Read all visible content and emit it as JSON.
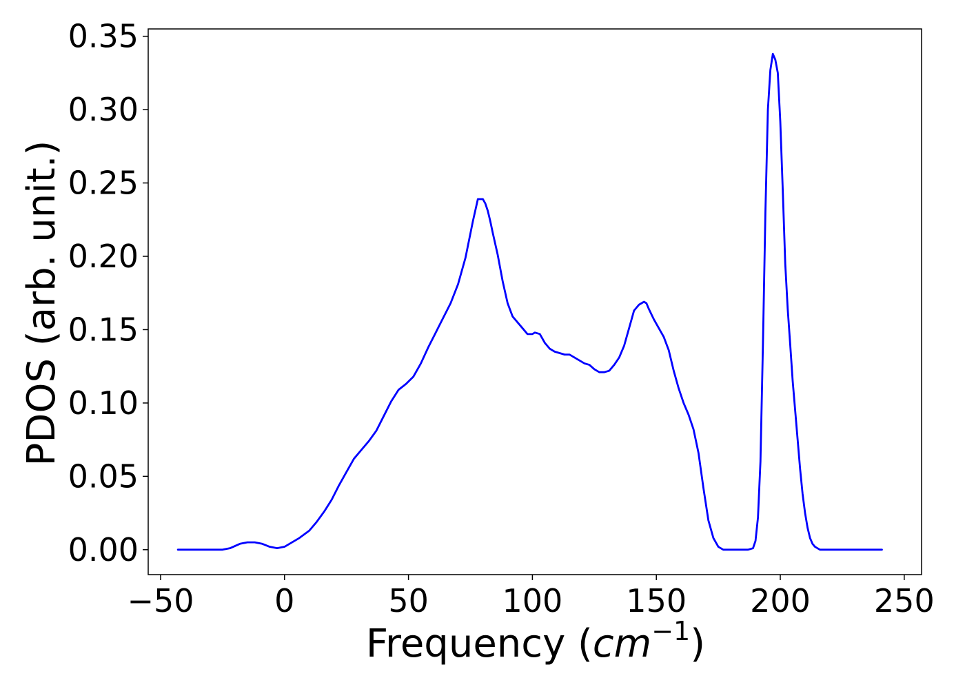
{
  "chart_data": {
    "type": "line",
    "title": "",
    "xlabel": {
      "text": "Frequency (",
      "math": "cm",
      "superscript": "−1",
      "close": ")"
    },
    "ylabel": "PDOS (arb. unit.)",
    "xlim": [
      -55,
      257
    ],
    "ylim": [
      -0.017,
      0.355
    ],
    "xticks": [
      -50,
      0,
      50,
      100,
      150,
      200,
      250
    ],
    "xtick_labels": [
      "−50",
      "0",
      "50",
      "100",
      "150",
      "200",
      "250"
    ],
    "yticks": [
      0.0,
      0.05,
      0.1,
      0.15,
      0.2,
      0.25,
      0.3,
      0.35
    ],
    "ytick_labels": [
      "0.00",
      "0.05",
      "0.10",
      "0.15",
      "0.20",
      "0.25",
      "0.30",
      "0.35"
    ],
    "grid": false,
    "legend": "none",
    "series": [
      {
        "color": "#0000ff",
        "x": [
          -43,
          -35,
          -25,
          -22,
          -18,
          -15,
          -12,
          -9,
          -6,
          -3,
          0,
          3,
          6,
          10,
          13,
          16,
          19,
          22,
          25,
          28,
          31,
          34,
          37,
          40,
          43,
          46,
          49,
          52,
          55,
          58,
          61,
          64,
          67,
          70,
          73,
          76,
          78,
          80,
          81,
          82,
          83,
          84,
          86,
          88,
          90,
          92,
          94,
          96,
          98,
          100,
          101,
          103,
          105,
          107,
          109,
          111,
          113,
          115,
          117,
          119,
          121,
          123,
          125,
          127,
          129,
          131,
          133,
          135,
          137,
          139,
          141,
          143,
          145,
          146,
          147,
          149,
          151,
          153,
          155,
          157,
          159,
          161,
          163,
          165,
          167,
          169,
          171,
          173,
          175,
          177,
          179,
          181,
          183,
          185,
          187,
          189,
          190,
          191,
          192,
          193,
          194,
          195,
          196,
          197,
          198,
          199,
          200,
          201,
          202,
          203,
          204,
          205,
          206,
          207,
          208,
          209,
          210,
          211,
          212,
          213,
          214,
          215,
          216,
          217,
          218,
          219,
          220,
          222,
          225,
          230,
          241
        ],
        "y": [
          0.0,
          0.0,
          0.0,
          0.001,
          0.004,
          0.005,
          0.005,
          0.004,
          0.002,
          0.001,
          0.002,
          0.005,
          0.008,
          0.013,
          0.019,
          0.026,
          0.034,
          0.044,
          0.053,
          0.062,
          0.068,
          0.074,
          0.081,
          0.091,
          0.101,
          0.109,
          0.113,
          0.118,
          0.127,
          0.138,
          0.148,
          0.158,
          0.168,
          0.181,
          0.199,
          0.224,
          0.239,
          0.239,
          0.236,
          0.231,
          0.224,
          0.216,
          0.201,
          0.183,
          0.168,
          0.159,
          0.155,
          0.151,
          0.147,
          0.147,
          0.148,
          0.147,
          0.141,
          0.137,
          0.135,
          0.134,
          0.133,
          0.133,
          0.131,
          0.129,
          0.127,
          0.126,
          0.123,
          0.121,
          0.121,
          0.122,
          0.126,
          0.131,
          0.139,
          0.151,
          0.163,
          0.167,
          0.169,
          0.168,
          0.164,
          0.157,
          0.151,
          0.145,
          0.136,
          0.122,
          0.11,
          0.1,
          0.092,
          0.082,
          0.066,
          0.042,
          0.02,
          0.008,
          0.002,
          0.0,
          0.0,
          0.0,
          0.0,
          0.0,
          0.0,
          0.001,
          0.006,
          0.022,
          0.06,
          0.14,
          0.23,
          0.3,
          0.327,
          0.338,
          0.334,
          0.325,
          0.292,
          0.245,
          0.195,
          0.164,
          0.14,
          0.115,
          0.095,
          0.075,
          0.055,
          0.038,
          0.025,
          0.015,
          0.008,
          0.004,
          0.002,
          0.001,
          0.0,
          0.0,
          0.0,
          0.0,
          0.0,
          0.0,
          0.0,
          0.0,
          0.0
        ]
      }
    ]
  }
}
